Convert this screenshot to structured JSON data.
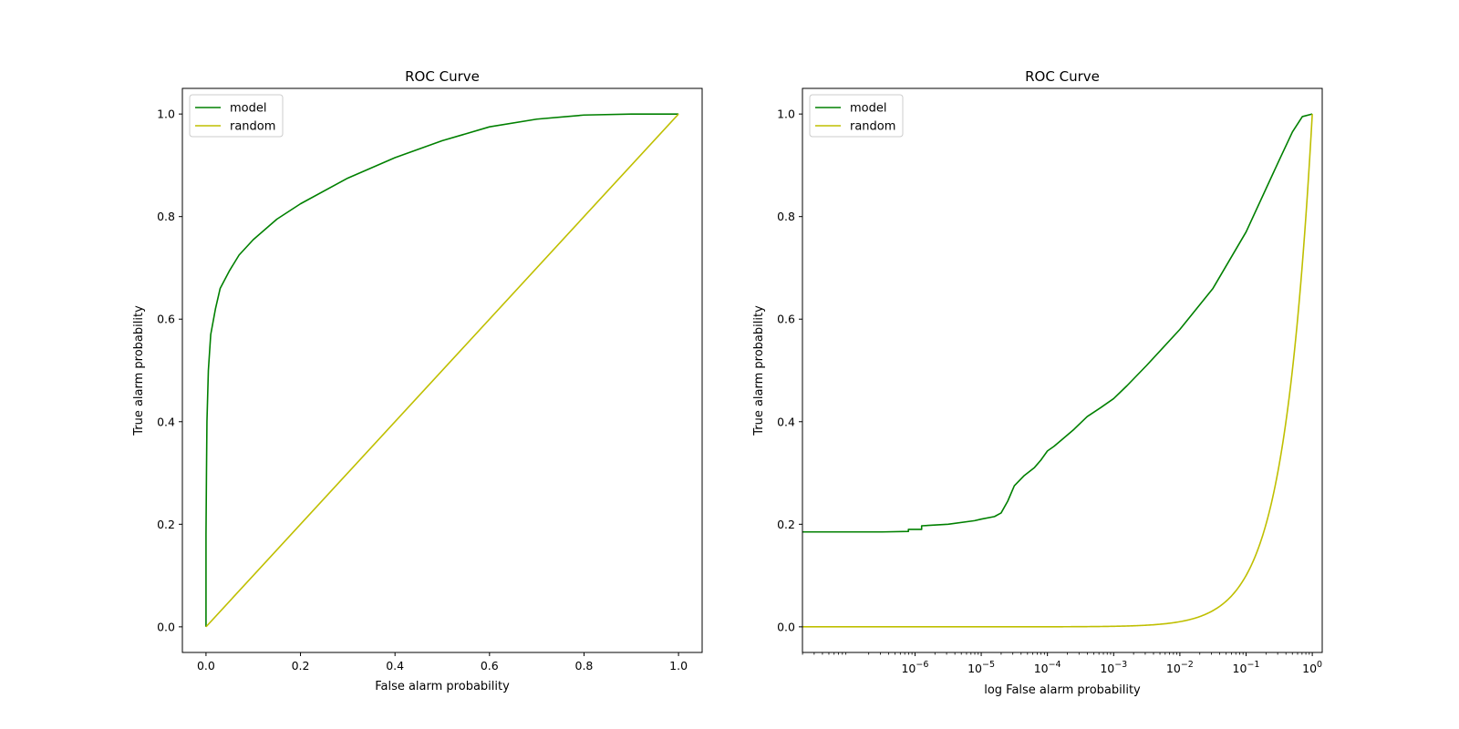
{
  "chart_data": [
    {
      "type": "line",
      "title": "ROC Curve",
      "xlabel": "False alarm probability",
      "ylabel": "True alarm probability",
      "xscale": "linear",
      "xlim": [
        -0.05,
        1.05
      ],
      "ylim": [
        -0.05,
        1.05
      ],
      "xticks": [
        0.0,
        0.2,
        0.4,
        0.6,
        0.8,
        1.0
      ],
      "xtick_labels": [
        "0.0",
        "0.2",
        "0.4",
        "0.6",
        "0.8",
        "1.0"
      ],
      "yticks": [
        0.0,
        0.2,
        0.4,
        0.6,
        0.8,
        1.0
      ],
      "ytick_labels": [
        "0.0",
        "0.2",
        "0.4",
        "0.6",
        "0.8",
        "1.0"
      ],
      "legend_position": "top-left",
      "series": [
        {
          "name": "model",
          "color": "#008000",
          "x": [
            0,
            0.0,
            0.001,
            0.002,
            0.005,
            0.01,
            0.02,
            0.03,
            0.05,
            0.07,
            0.1,
            0.15,
            0.2,
            0.3,
            0.4,
            0.5,
            0.6,
            0.7,
            0.8,
            0.9,
            1.0
          ],
          "y": [
            0,
            0.18,
            0.3,
            0.4,
            0.5,
            0.57,
            0.62,
            0.66,
            0.695,
            0.725,
            0.755,
            0.795,
            0.825,
            0.875,
            0.915,
            0.948,
            0.975,
            0.99,
            0.998,
            1.0,
            1.0
          ]
        },
        {
          "name": "random",
          "color": "#bfbf00",
          "x": [
            0,
            1
          ],
          "y": [
            0,
            1
          ]
        }
      ]
    },
    {
      "type": "line",
      "title": "ROC Curve",
      "xlabel": "log False alarm probability",
      "ylabel": "True alarm probability",
      "xscale": "log",
      "xlim_exp": [
        -7.7,
        0.15
      ],
      "ylim": [
        -0.05,
        1.05
      ],
      "xtick_exponents": [
        -6,
        -5,
        -4,
        -3,
        -2,
        -1,
        0
      ],
      "xtick_base": "10",
      "yticks": [
        0.0,
        0.2,
        0.4,
        0.6,
        0.8,
        1.0
      ],
      "ytick_labels": [
        "0.0",
        "0.2",
        "0.4",
        "0.6",
        "0.8",
        "1.0"
      ],
      "legend_position": "top-left",
      "series": [
        {
          "name": "model",
          "color": "#008000",
          "log_x": [
            -7.7,
            -6.5,
            -6.1,
            -6.1,
            -5.9,
            -5.9,
            -5.5,
            -5.1,
            -5.0,
            -4.8,
            -4.7,
            -4.6,
            -4.5,
            -4.35,
            -4.2,
            -4.1,
            -4.0,
            -3.9,
            -3.8,
            -3.6,
            -3.4,
            -3.2,
            -3.0,
            -2.8,
            -2.5,
            -2.0,
            -1.5,
            -1.0,
            -0.5,
            -0.3,
            -0.15,
            0.0
          ],
          "y": [
            0.185,
            0.185,
            0.186,
            0.19,
            0.19,
            0.197,
            0.2,
            0.207,
            0.21,
            0.215,
            0.222,
            0.245,
            0.275,
            0.295,
            0.31,
            0.325,
            0.343,
            0.352,
            0.363,
            0.385,
            0.41,
            0.427,
            0.445,
            0.47,
            0.51,
            0.58,
            0.66,
            0.77,
            0.91,
            0.965,
            0.995,
            1.0
          ]
        },
        {
          "name": "random",
          "color": "#bfbf00",
          "x": [
            0,
            1
          ],
          "y": [
            0,
            1
          ]
        }
      ]
    }
  ]
}
